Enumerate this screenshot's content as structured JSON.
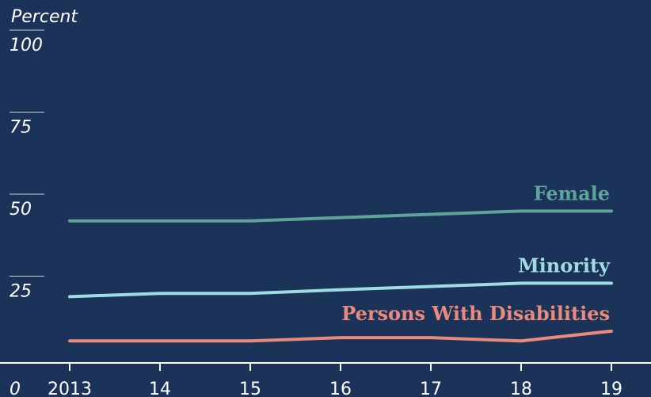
{
  "chart_data": {
    "type": "line",
    "ylabel": "Percent",
    "ylim": [
      0,
      100
    ],
    "yticks": [
      "0",
      "25",
      "50",
      "75",
      "100"
    ],
    "x": [
      2013,
      2014,
      2015,
      2016,
      2017,
      2018,
      2019
    ],
    "x_tick_labels": [
      "2013",
      "14",
      "15",
      "16",
      "17",
      "18",
      "19"
    ],
    "series": [
      {
        "name": "Female",
        "color": "#5fa39a",
        "values": [
          43.3,
          43.3,
          43.3,
          44.3,
          45.3,
          46.3,
          46.3
        ]
      },
      {
        "name": "Minority",
        "color": "#9fdbe3",
        "values": [
          20.2,
          21.2,
          21.2,
          22.3,
          23.3,
          24.3,
          24.3
        ]
      },
      {
        "name": "Persons With Disabilities",
        "color": "#ea8a7d",
        "values": [
          6.7,
          6.7,
          6.7,
          7.7,
          7.7,
          6.7,
          9.7
        ]
      }
    ],
    "grid": false,
    "legend": "direct labels at line ends"
  }
}
